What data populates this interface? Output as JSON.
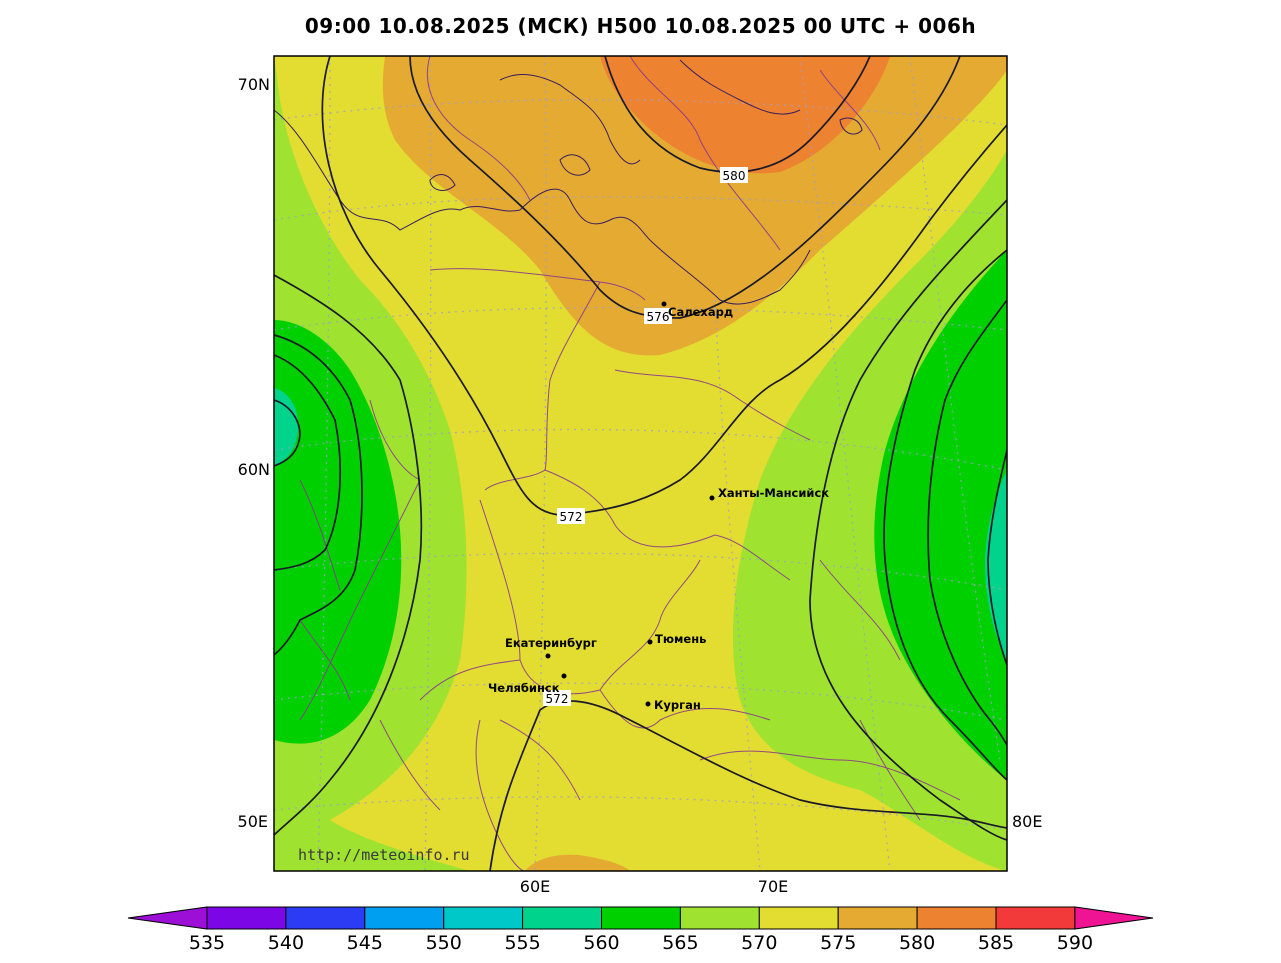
{
  "title": "09:00 10.08.2025 (МСК) H500  10.08.2025 00 UTC + 006h",
  "axis": {
    "lat_labels": [
      "70N",
      "60N"
    ],
    "lon_left_labels": [
      "50E"
    ],
    "lon_right_labels": [
      "80E"
    ],
    "lon_bottom_labels": [
      "60E",
      "70E"
    ]
  },
  "contours": [
    {
      "value": "580"
    },
    {
      "value": "576"
    },
    {
      "value": "572"
    },
    {
      "value": "572"
    }
  ],
  "cities": [
    {
      "name": "Салехард"
    },
    {
      "name": "Ханты-Мансийск"
    },
    {
      "name": "Екатеринбург"
    },
    {
      "name": "Тюмень"
    },
    {
      "name": "Челябинск"
    },
    {
      "name": "Курган"
    }
  ],
  "watermark": "http://meteoinfo.ru",
  "colorbar": {
    "ticks": [
      "535",
      "540",
      "545",
      "550",
      "555",
      "560",
      "565",
      "570",
      "575",
      "580",
      "585",
      "590"
    ],
    "colors": [
      "#9b0fd6",
      "#7d06e6",
      "#2c3cf5",
      "#009fef",
      "#00c8c8",
      "#00d38c",
      "#00d000",
      "#9fe330",
      "#e3dc31",
      "#e4aa32",
      "#ed8230",
      "#f23a3a",
      "#ee1493"
    ]
  }
}
